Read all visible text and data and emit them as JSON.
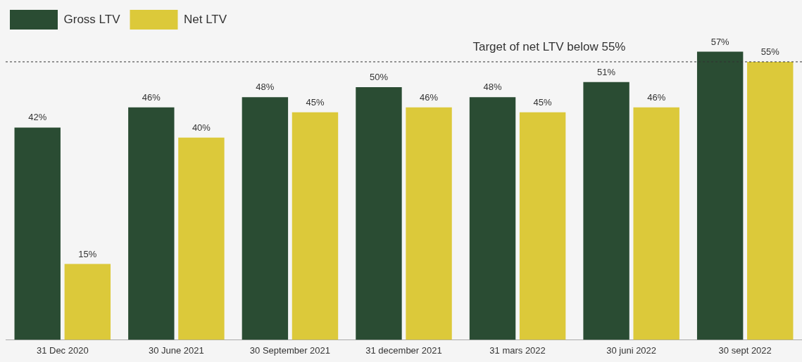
{
  "chart_data": {
    "type": "bar",
    "categories": [
      "31 Dec 2020",
      "30 June 2021",
      "30 September 2021",
      "31 december 2021",
      "31 mars 2022",
      "30 juni 2022",
      "30 sept 2022"
    ],
    "series": [
      {
        "name": "Gross LTV",
        "color": "#2a4c33",
        "values": [
          42,
          46,
          48,
          50,
          48,
          51,
          57
        ],
        "value_labels": [
          "42%",
          "46%",
          "48%",
          "50%",
          "48%",
          "51%",
          "57%"
        ]
      },
      {
        "name": "Net LTV",
        "color": "#dcc93a",
        "values": [
          15,
          40,
          45,
          46,
          45,
          46,
          55
        ],
        "value_labels": [
          "15%",
          "40%",
          "45%",
          "46%",
          "45%",
          "46%",
          "55%"
        ]
      }
    ],
    "grid": false,
    "legend": "top left",
    "tick_labels": "x",
    "ref_lines": [
      {
        "axis": "y",
        "value": 55,
        "label": "Target of net LTV below 55%",
        "color": "#333333",
        "line_style": "dashed"
      }
    ]
  }
}
